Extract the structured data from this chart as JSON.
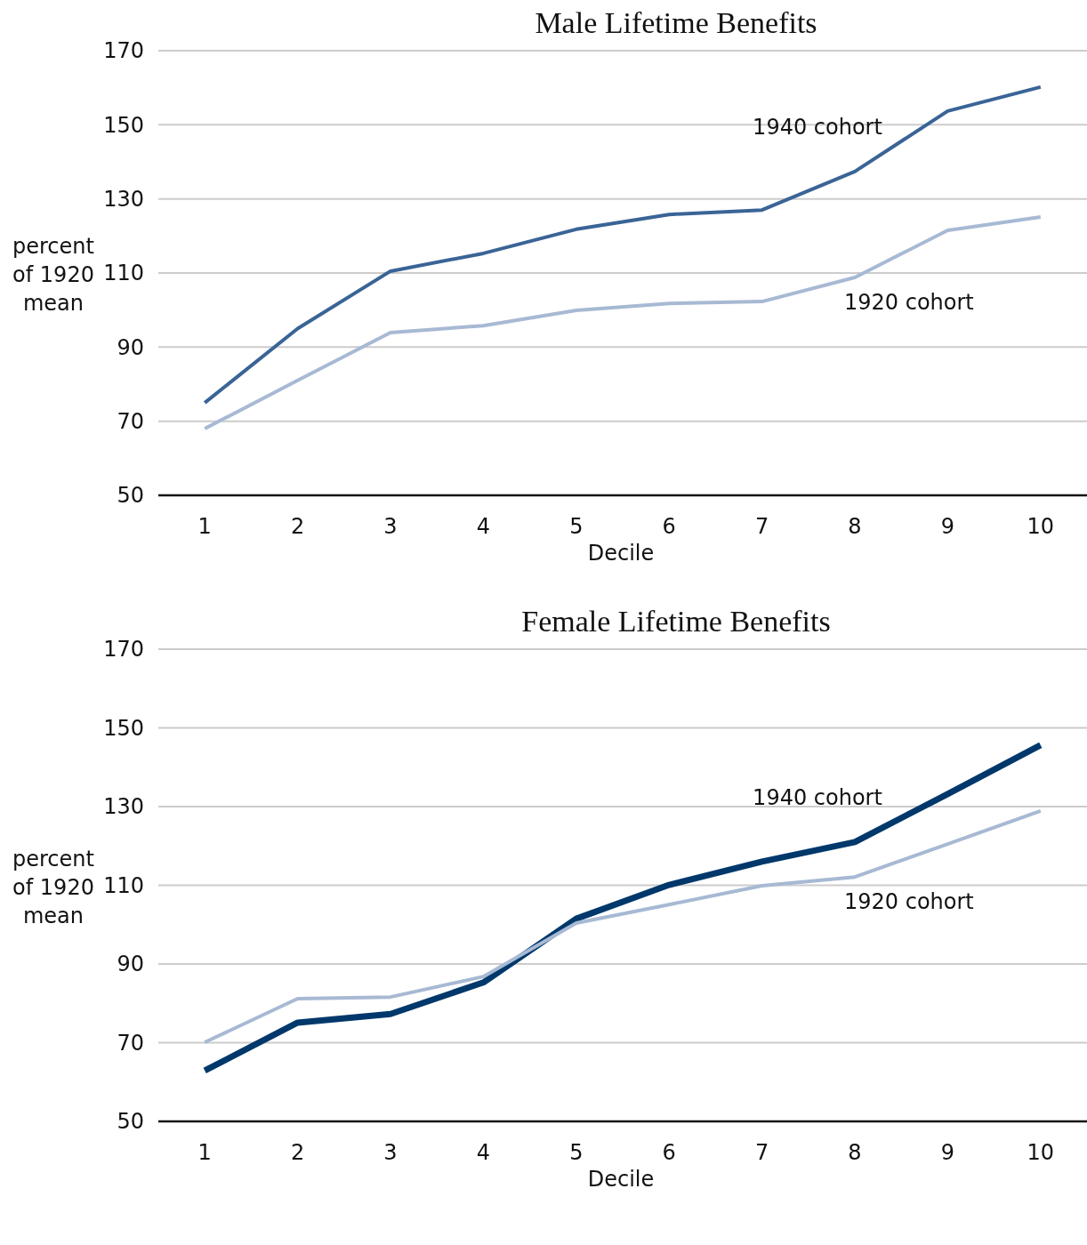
{
  "chart_data": [
    {
      "type": "line",
      "title": "Male Lifetime Benefits",
      "xlabel": "Decile",
      "ylabel": "percent of 1920 mean",
      "categories": [
        "1",
        "2",
        "3",
        "4",
        "5",
        "6",
        "7",
        "8",
        "9",
        "10"
      ],
      "ylim": [
        50,
        170
      ],
      "yticks": [
        50,
        70,
        90,
        110,
        130,
        150,
        170
      ],
      "grid": "y",
      "series": [
        {
          "name": "1940 cohort",
          "color": "#3a6496",
          "values": [
            75,
            95,
            110.5,
            115.3,
            121.8,
            125.8,
            127,
            137.4,
            153.7,
            160.2
          ]
        },
        {
          "name": "1920 cohort",
          "color": "#a7b9d3",
          "values": [
            68,
            81,
            93.9,
            95.8,
            99.9,
            101.8,
            102.3,
            108.8,
            121.5,
            125.1
          ]
        }
      ]
    },
    {
      "type": "line",
      "title": "Female Lifetime Benefits",
      "xlabel": "Decile",
      "ylabel": "percent of 1920 mean",
      "categories": [
        "1",
        "2",
        "3",
        "4",
        "5",
        "6",
        "7",
        "8",
        "9",
        "10"
      ],
      "ylim": [
        50,
        170
      ],
      "yticks": [
        50,
        70,
        90,
        110,
        130,
        150,
        170
      ],
      "grid": "y",
      "series": [
        {
          "name": "1940 cohort",
          "color": "#00386b",
          "values": [
            62.9,
            75.1,
            77.3,
            85.3,
            101.5,
            110.1,
            116,
            121,
            133.2,
            145.6
          ]
        },
        {
          "name": "1920 cohort",
          "color": "#a7b9d3",
          "values": [
            70.1,
            81.2,
            81.6,
            86.8,
            100.4,
            105.1,
            109.9,
            112.1,
            120.5,
            128.9
          ]
        }
      ]
    }
  ]
}
